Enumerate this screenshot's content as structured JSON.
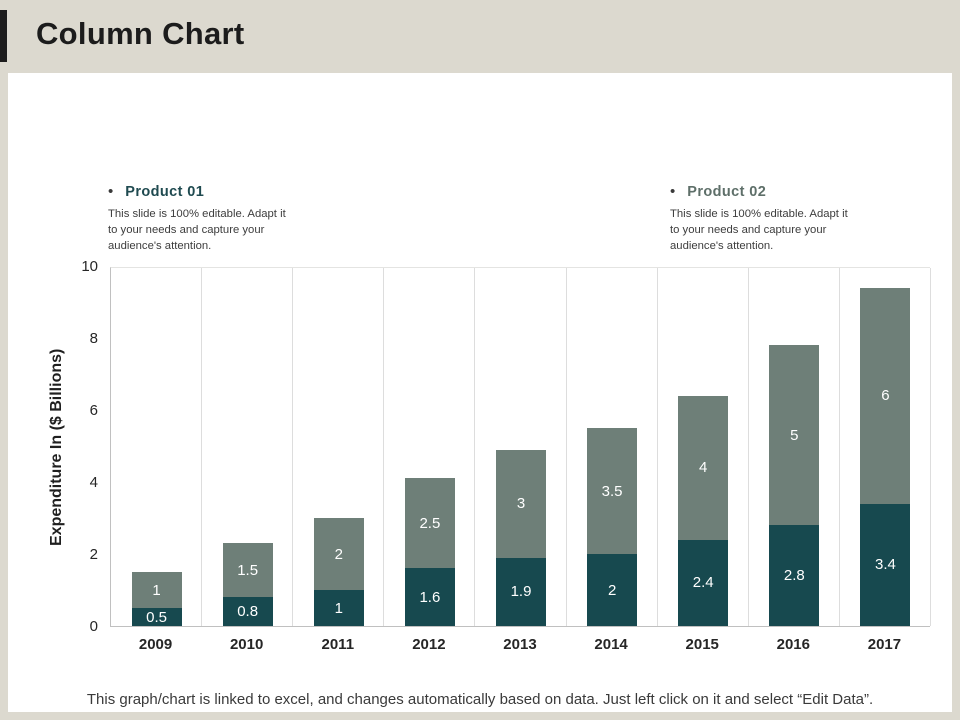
{
  "slide": {
    "title": "Column Chart",
    "footer": "This graph/chart is linked to excel, and changes automatically based on data. Just left click on it and select “Edit Data”."
  },
  "legend": {
    "items": [
      {
        "bullet": "•",
        "label": "Product 01",
        "color": "#1F4A50",
        "desc": "This slide is 100% editable. Adapt it to your needs and capture your audience's attention."
      },
      {
        "bullet": "•",
        "label": "Product 02",
        "color": "#5E6F69",
        "desc": "This slide is 100% editable. Adapt it to your needs and capture your audience's attention."
      }
    ]
  },
  "chart_data": {
    "type": "bar",
    "stacked": true,
    "title": "",
    "xlabel": "",
    "ylabel": "Expenditure In ($ Billions)",
    "ylim": [
      0,
      10
    ],
    "yticks": [
      0,
      2,
      4,
      6,
      8,
      10
    ],
    "grid": "vertical",
    "legend_position": "top",
    "categories": [
      "2009",
      "2010",
      "2011",
      "2012",
      "2013",
      "2014",
      "2015",
      "2016",
      "2017"
    ],
    "series": [
      {
        "name": "Product 01",
        "color": "#17494F",
        "values": [
          0.5,
          0.8,
          1,
          1.6,
          1.9,
          2,
          2.4,
          2.8,
          3.4
        ],
        "labels": [
          "0.5",
          "0.8",
          "1",
          "1.6",
          "1.9",
          "2",
          "2.4",
          "2.8",
          "3.4"
        ]
      },
      {
        "name": "Product 02",
        "color": "#6E7F78",
        "values": [
          1,
          1.5,
          2,
          2.5,
          3,
          3.5,
          4,
          5,
          6
        ],
        "labels": [
          "1",
          "1.5",
          "2",
          "2.5",
          "3",
          "3.5",
          "4",
          "5",
          "6"
        ]
      }
    ]
  },
  "colors": {
    "background": "#DCD9CF",
    "slide": "#FFFFFF",
    "accent_bar": "#1D1D1D",
    "series1": "#17494F",
    "series2": "#6E7F78",
    "gridline": "#DDDDDD",
    "axis": "#C0C0C0",
    "data_label": "#FFFFFF"
  }
}
